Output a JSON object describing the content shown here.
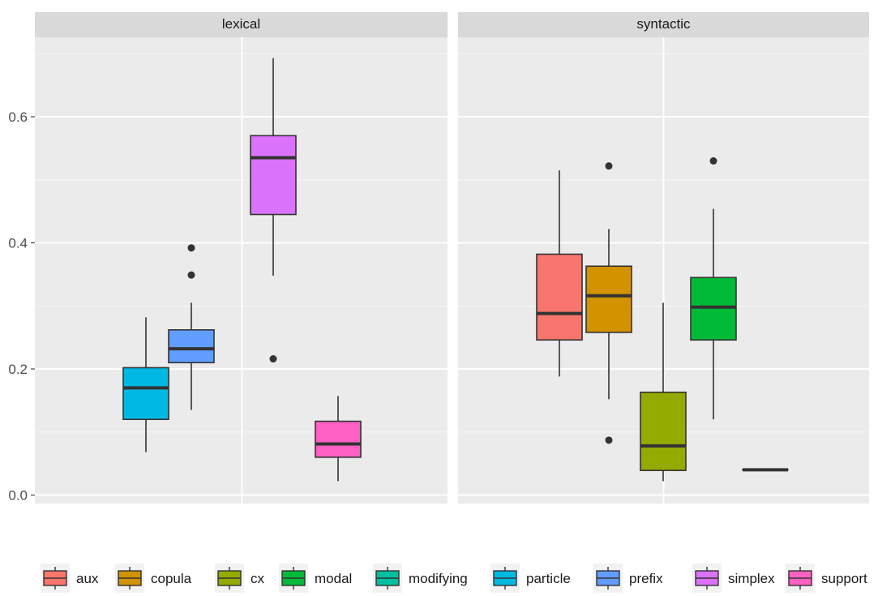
{
  "chart_data": {
    "type": "boxplot",
    "facets": [
      "lexical",
      "syntactic"
    ],
    "y_ticks": [
      0.0,
      0.2,
      0.4,
      0.6
    ],
    "y_tick_labels": [
      "0.0",
      "0.2",
      "0.4",
      "0.6"
    ],
    "ylim": [
      -0.015,
      0.725
    ],
    "legend_position": "bottom",
    "legend": [
      {
        "label": "aux",
        "color": "#F8766D"
      },
      {
        "label": "copula",
        "color": "#D39200"
      },
      {
        "label": "cx",
        "color": "#93AA00"
      },
      {
        "label": "modal",
        "color": "#00BA38"
      },
      {
        "label": "modifying",
        "color": "#00C19F"
      },
      {
        "label": "particle",
        "color": "#00B9E3"
      },
      {
        "label": "prefix",
        "color": "#619CFF"
      },
      {
        "label": "simplex",
        "color": "#DB72FB"
      },
      {
        "label": "support",
        "color": "#FF61C3"
      }
    ],
    "boxes": [
      {
        "facet": "lexical",
        "group": "particle",
        "color": "#00B9E3",
        "slot": 0,
        "whisker_low": 0.068,
        "q1": 0.12,
        "median": 0.17,
        "q3": 0.202,
        "whisker_high": 0.282,
        "outliers": []
      },
      {
        "facet": "lexical",
        "group": "prefix",
        "color": "#619CFF",
        "slot": 1,
        "whisker_low": 0.135,
        "q1": 0.21,
        "median": 0.232,
        "q3": 0.262,
        "whisker_high": 0.305,
        "outliers": [
          0.349,
          0.392
        ]
      },
      {
        "facet": "lexical",
        "group": "simplex",
        "color": "#DB72FB",
        "slot": 2,
        "whisker_low": 0.348,
        "q1": 0.445,
        "median": 0.535,
        "q3": 0.57,
        "whisker_high": 0.693,
        "outliers": [
          0.216
        ]
      },
      {
        "facet": "lexical",
        "group": "support",
        "color": "#FF61C3",
        "slot": 3,
        "whisker_low": 0.022,
        "q1": 0.06,
        "median": 0.081,
        "q3": 0.117,
        "whisker_high": 0.157,
        "outliers": []
      },
      {
        "facet": "syntactic",
        "group": "aux",
        "color": "#F8766D",
        "slot": 0,
        "whisker_low": 0.188,
        "q1": 0.246,
        "median": 0.288,
        "q3": 0.382,
        "whisker_high": 0.515,
        "outliers": []
      },
      {
        "facet": "syntactic",
        "group": "copula",
        "color": "#D39200",
        "slot": 1,
        "whisker_low": 0.152,
        "q1": 0.258,
        "median": 0.316,
        "q3": 0.363,
        "whisker_high": 0.422,
        "outliers": [
          0.087,
          0.522
        ]
      },
      {
        "facet": "syntactic",
        "group": "cx",
        "color": "#93AA00",
        "slot": 2,
        "whisker_low": 0.022,
        "q1": 0.039,
        "median": 0.078,
        "q3": 0.163,
        "whisker_high": 0.305,
        "outliers": []
      },
      {
        "facet": "syntactic",
        "group": "modal",
        "color": "#00BA38",
        "slot": 3,
        "whisker_low": 0.12,
        "q1": 0.246,
        "median": 0.298,
        "q3": 0.345,
        "whisker_high": 0.454,
        "outliers": [
          0.53
        ]
      },
      {
        "facet": "syntactic",
        "group": "modifying",
        "color": "#00C19F",
        "slot": 4,
        "whisker_low": 0.04,
        "q1": 0.04,
        "median": 0.04,
        "q3": 0.04,
        "whisker_high": 0.04,
        "outliers": []
      }
    ]
  }
}
